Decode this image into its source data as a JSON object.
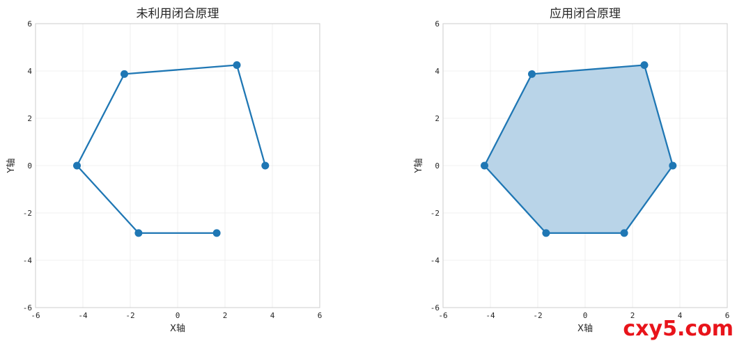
{
  "chart_data": [
    {
      "type": "line",
      "title": "未利用闭合原理",
      "xlabel": "X轴",
      "ylabel": "Y轴",
      "xlim": [
        -6,
        6
      ],
      "ylim": [
        -6,
        6
      ],
      "xticks": [
        -6,
        -4,
        -2,
        0,
        2,
        4,
        6
      ],
      "yticks": [
        -6,
        -4,
        -2,
        0,
        2,
        4,
        6
      ],
      "grid": true,
      "closed": false,
      "filled": false,
      "series": [
        {
          "color": "#1f77b4",
          "points": [
            {
              "x": 3.7,
              "y": 0.0
            },
            {
              "x": 2.5,
              "y": 4.25
            },
            {
              "x": -2.25,
              "y": 3.87
            },
            {
              "x": -4.25,
              "y": 0.0
            },
            {
              "x": -1.65,
              "y": -2.85
            },
            {
              "x": 1.65,
              "y": -2.85
            }
          ]
        }
      ]
    },
    {
      "type": "area",
      "title": "应用闭合原理",
      "xlabel": "X轴",
      "ylabel": "Y轴",
      "xlim": [
        -6,
        6
      ],
      "ylim": [
        -6,
        6
      ],
      "xticks": [
        -6,
        -4,
        -2,
        0,
        2,
        4,
        6
      ],
      "yticks": [
        -6,
        -4,
        -2,
        0,
        2,
        4,
        6
      ],
      "grid": true,
      "closed": true,
      "filled": true,
      "series": [
        {
          "color": "#1f77b4",
          "fill_color": "#b9d4e8",
          "points": [
            {
              "x": 3.7,
              "y": 0.0
            },
            {
              "x": 2.5,
              "y": 4.25
            },
            {
              "x": -2.25,
              "y": 3.87
            },
            {
              "x": -4.25,
              "y": 0.0
            },
            {
              "x": -1.65,
              "y": -2.85
            },
            {
              "x": 1.65,
              "y": -2.85
            }
          ]
        }
      ]
    }
  ],
  "watermark": {
    "text": "cxy5.com",
    "color": "#e8141b"
  }
}
